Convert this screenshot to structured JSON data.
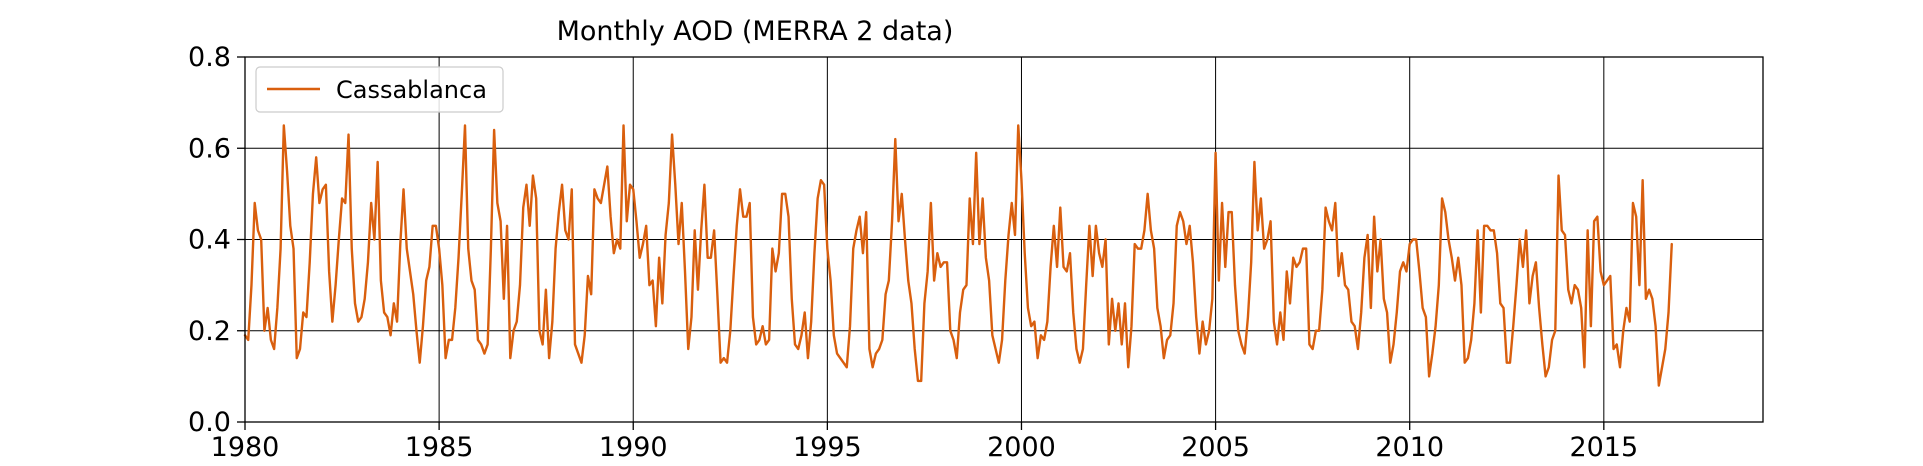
{
  "chart_data": {
    "type": "line",
    "title": "Monthly AOD (MERRA 2 data)",
    "xlabel": "",
    "ylabel": "",
    "xlim": [
      1980,
      2019.1
    ],
    "ylim": [
      0.0,
      0.8
    ],
    "xticks": [
      1980,
      1985,
      1990,
      1995,
      2000,
      2005,
      2010,
      2015
    ],
    "xtick_labels": [
      "1980",
      "1985",
      "1990",
      "1995",
      "2000",
      "2005",
      "2010",
      "2015"
    ],
    "yticks": [
      0.0,
      0.2,
      0.4,
      0.6,
      0.8
    ],
    "ytick_labels": [
      "0.0",
      "0.2",
      "0.4",
      "0.6",
      "0.8"
    ],
    "grid": true,
    "legend_position": "top-left",
    "series": [
      {
        "name": "Cassablanca",
        "color": "#d95f0e",
        "x_start": 1980.0,
        "x_step_months": 1,
        "values": [
          0.19,
          0.18,
          0.3,
          0.48,
          0.42,
          0.4,
          0.2,
          0.25,
          0.18,
          0.16,
          0.25,
          0.38,
          0.65,
          0.55,
          0.43,
          0.38,
          0.14,
          0.16,
          0.24,
          0.23,
          0.35,
          0.5,
          0.58,
          0.48,
          0.51,
          0.52,
          0.33,
          0.22,
          0.3,
          0.4,
          0.49,
          0.48,
          0.63,
          0.38,
          0.26,
          0.22,
          0.23,
          0.27,
          0.35,
          0.48,
          0.4,
          0.57,
          0.31,
          0.24,
          0.23,
          0.19,
          0.26,
          0.22,
          0.39,
          0.51,
          0.38,
          0.33,
          0.28,
          0.2,
          0.13,
          0.21,
          0.31,
          0.34,
          0.43,
          0.43,
          0.38,
          0.3,
          0.14,
          0.18,
          0.18,
          0.25,
          0.36,
          0.5,
          0.65,
          0.38,
          0.31,
          0.29,
          0.18,
          0.17,
          0.15,
          0.17,
          0.38,
          0.64,
          0.48,
          0.44,
          0.27,
          0.43,
          0.14,
          0.2,
          0.22,
          0.3,
          0.47,
          0.52,
          0.43,
          0.54,
          0.49,
          0.2,
          0.17,
          0.29,
          0.14,
          0.22,
          0.38,
          0.46,
          0.52,
          0.42,
          0.4,
          0.51,
          0.17,
          0.15,
          0.13,
          0.19,
          0.32,
          0.28,
          0.51,
          0.49,
          0.48,
          0.52,
          0.56,
          0.45,
          0.37,
          0.4,
          0.38,
          0.65,
          0.44,
          0.52,
          0.51,
          0.44,
          0.36,
          0.39,
          0.43,
          0.3,
          0.31,
          0.21,
          0.36,
          0.26,
          0.41,
          0.48,
          0.63,
          0.52,
          0.39,
          0.48,
          0.33,
          0.16,
          0.23,
          0.42,
          0.29,
          0.42,
          0.52,
          0.36,
          0.36,
          0.42,
          0.28,
          0.13,
          0.14,
          0.13,
          0.2,
          0.32,
          0.43,
          0.51,
          0.45,
          0.45,
          0.48,
          0.23,
          0.17,
          0.18,
          0.21,
          0.17,
          0.18,
          0.38,
          0.33,
          0.37,
          0.5,
          0.5,
          0.45,
          0.27,
          0.17,
          0.16,
          0.19,
          0.24,
          0.14,
          0.22,
          0.37,
          0.49,
          0.53,
          0.52,
          0.38,
          0.31,
          0.19,
          0.15,
          0.14,
          0.13,
          0.12,
          0.21,
          0.38,
          0.42,
          0.45,
          0.37,
          0.46,
          0.16,
          0.12,
          0.15,
          0.16,
          0.18,
          0.28,
          0.31,
          0.44,
          0.62,
          0.44,
          0.5,
          0.4,
          0.31,
          0.26,
          0.16,
          0.09,
          0.09,
          0.26,
          0.33,
          0.48,
          0.31,
          0.37,
          0.34,
          0.35,
          0.35,
          0.2,
          0.18,
          0.14,
          0.24,
          0.29,
          0.3,
          0.49,
          0.39,
          0.59,
          0.39,
          0.49,
          0.36,
          0.31,
          0.19,
          0.16,
          0.13,
          0.18,
          0.31,
          0.41,
          0.48,
          0.41,
          0.65,
          0.53,
          0.37,
          0.25,
          0.21,
          0.22,
          0.14,
          0.19,
          0.18,
          0.22,
          0.34,
          0.43,
          0.34,
          0.47,
          0.34,
          0.33,
          0.37,
          0.24,
          0.16,
          0.13,
          0.16,
          0.3,
          0.43,
          0.32,
          0.43,
          0.37,
          0.34,
          0.4,
          0.17,
          0.27,
          0.2,
          0.26,
          0.17,
          0.26,
          0.12,
          0.21,
          0.39,
          0.38,
          0.38,
          0.42,
          0.5,
          0.42,
          0.38,
          0.25,
          0.21,
          0.14,
          0.18,
          0.19,
          0.26,
          0.43,
          0.46,
          0.44,
          0.39,
          0.43,
          0.35,
          0.23,
          0.15,
          0.22,
          0.17,
          0.2,
          0.27,
          0.59,
          0.31,
          0.48,
          0.34,
          0.46,
          0.46,
          0.3,
          0.2,
          0.17,
          0.15,
          0.23,
          0.35,
          0.57,
          0.42,
          0.49,
          0.38,
          0.4,
          0.44,
          0.22,
          0.17,
          0.24,
          0.18,
          0.33,
          0.26,
          0.36,
          0.34,
          0.35,
          0.38,
          0.38,
          0.17,
          0.16,
          0.2,
          0.2,
          0.29,
          0.47,
          0.44,
          0.42,
          0.48,
          0.32,
          0.37,
          0.3,
          0.29,
          0.22,
          0.21,
          0.16,
          0.24,
          0.36,
          0.41,
          0.25,
          0.45,
          0.33,
          0.4,
          0.27,
          0.24,
          0.13,
          0.17,
          0.24,
          0.33,
          0.35,
          0.33,
          0.39,
          0.4,
          0.4,
          0.33,
          0.25,
          0.23,
          0.1,
          0.15,
          0.21,
          0.3,
          0.49,
          0.46,
          0.4,
          0.36,
          0.31,
          0.36,
          0.3,
          0.13,
          0.14,
          0.18,
          0.26,
          0.42,
          0.24,
          0.43,
          0.43,
          0.42,
          0.42,
          0.37,
          0.26,
          0.25,
          0.13,
          0.13,
          0.21,
          0.3,
          0.4,
          0.34,
          0.42,
          0.26,
          0.32,
          0.35,
          0.25,
          0.17,
          0.1,
          0.12,
          0.18,
          0.2,
          0.54,
          0.42,
          0.41,
          0.29,
          0.26,
          0.3,
          0.29,
          0.25,
          0.12,
          0.42,
          0.21,
          0.44,
          0.45,
          0.33,
          0.3,
          0.31,
          0.32,
          0.16,
          0.17,
          0.12,
          0.2,
          0.25,
          0.22,
          0.48,
          0.45,
          0.3,
          0.53,
          0.27,
          0.29,
          0.27,
          0.21,
          0.08,
          0.12,
          0.16,
          0.24,
          0.39
        ]
      }
    ]
  }
}
